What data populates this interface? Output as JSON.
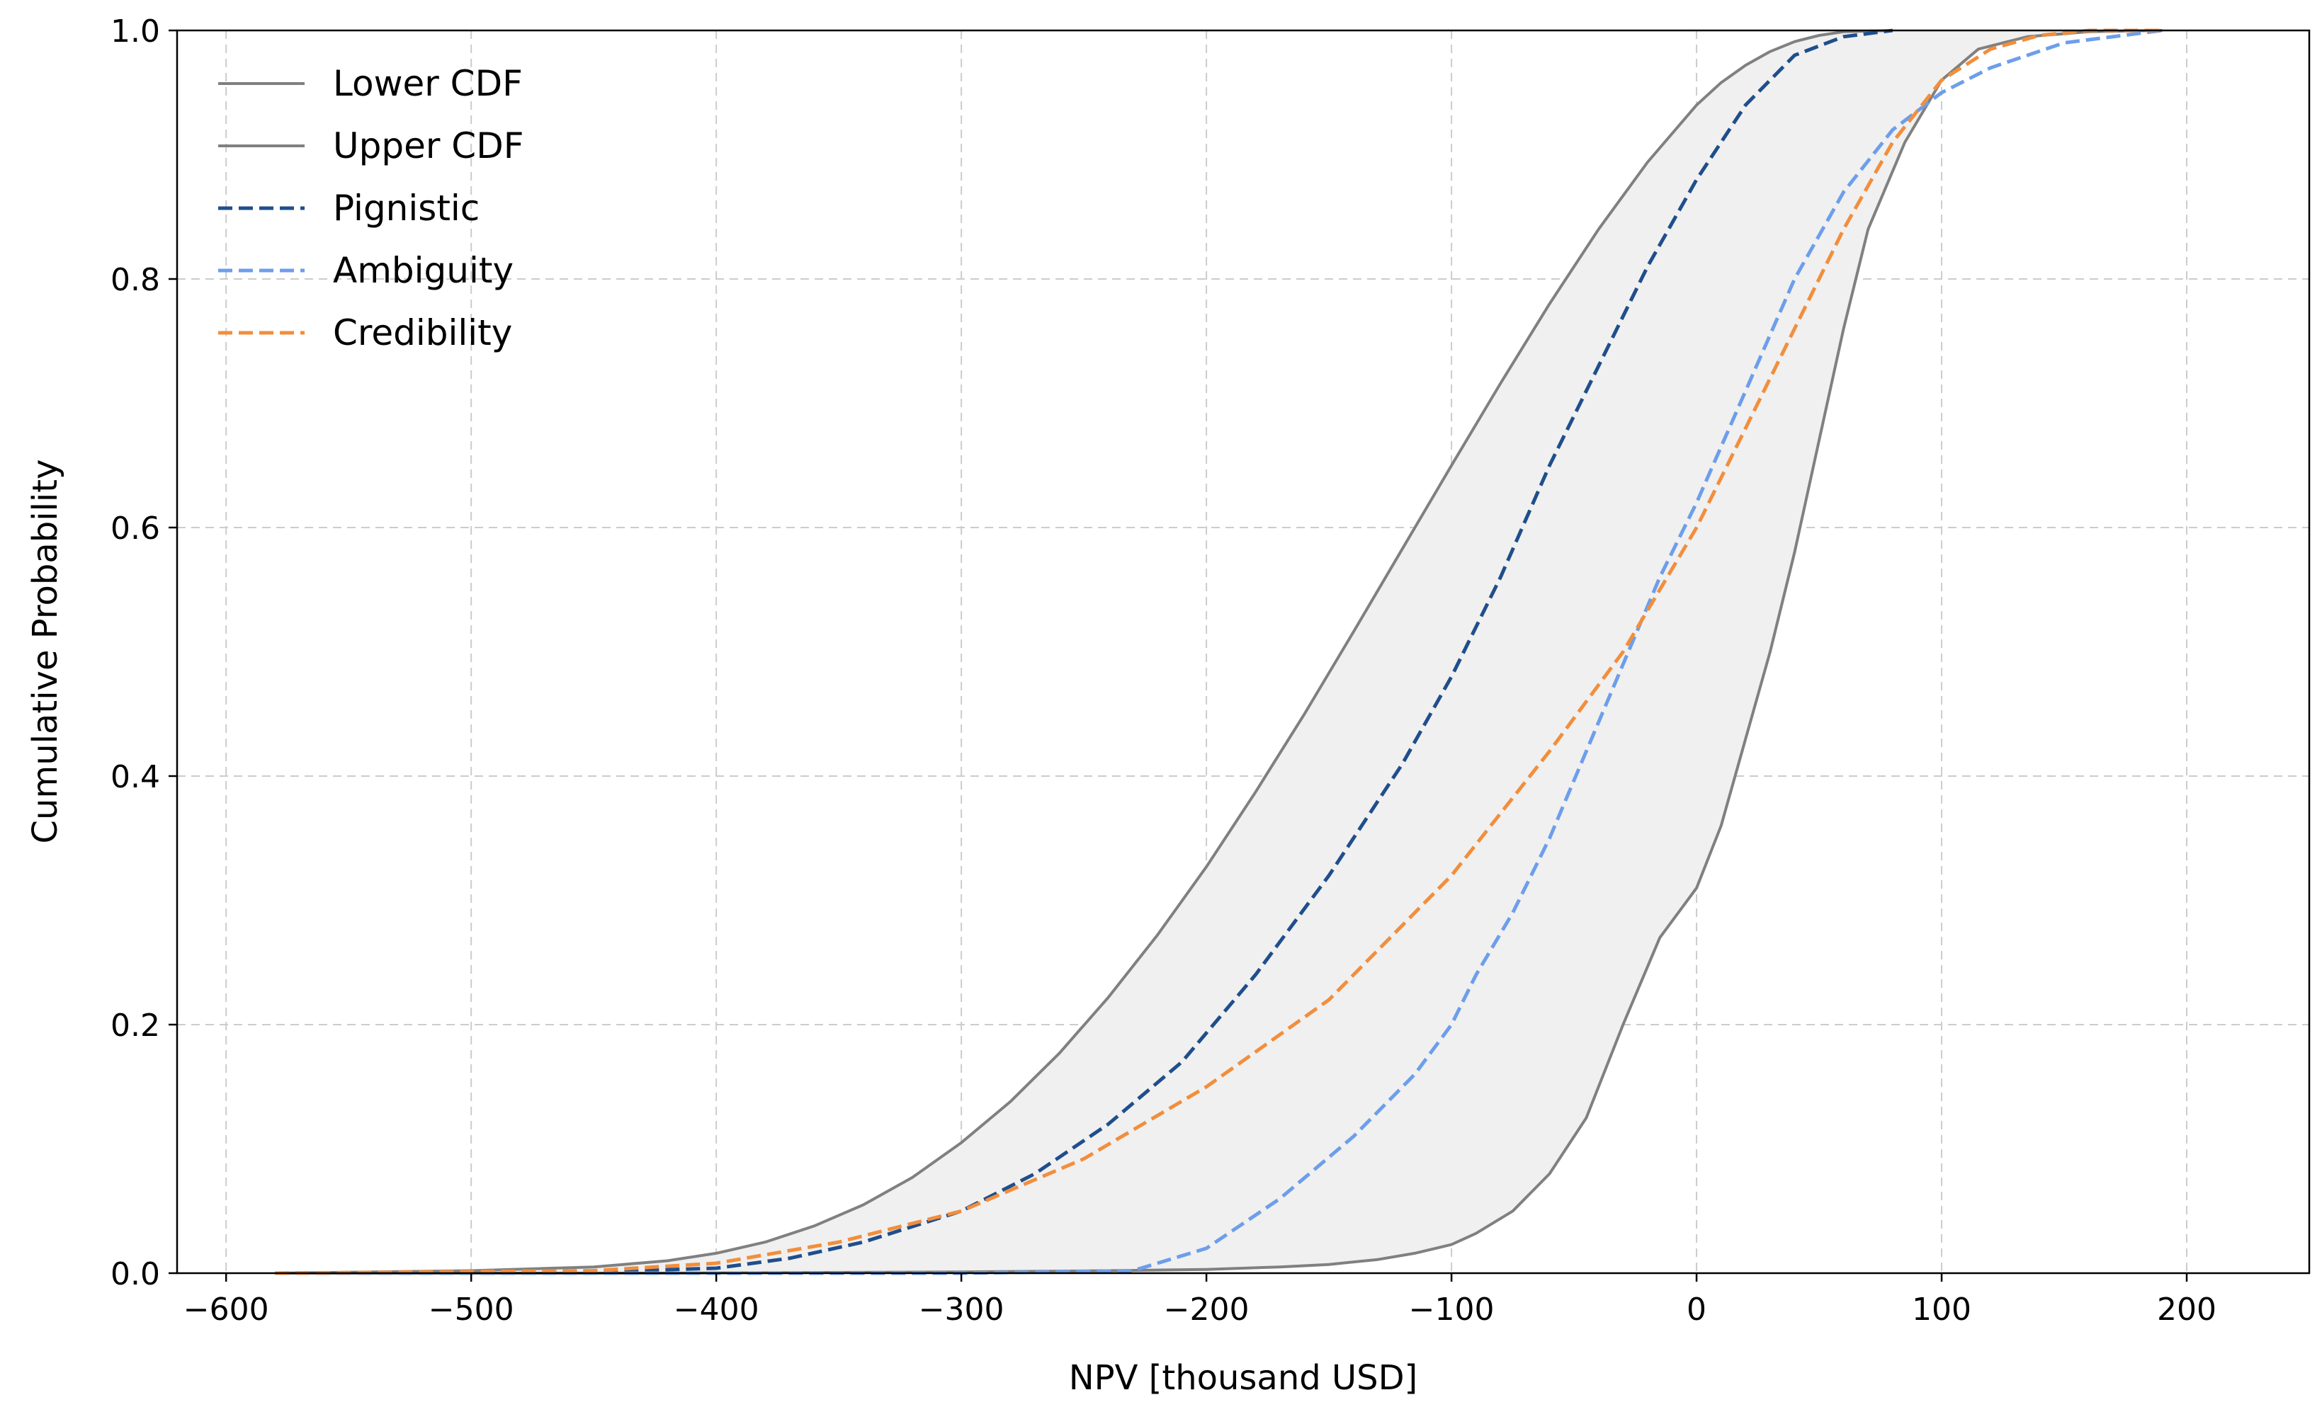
{
  "chart_data": {
    "type": "line",
    "title": "",
    "xlabel": "NPV [thousand USD]",
    "ylabel": "Cumulative Probability",
    "xlim": [
      -620,
      250
    ],
    "ylim": [
      0,
      1
    ],
    "x_ticks": [
      -600,
      -500,
      -400,
      -300,
      -200,
      -100,
      0,
      100,
      200
    ],
    "y_ticks": [
      0.0,
      0.2,
      0.4,
      0.6,
      0.8,
      1.0
    ],
    "x_tick_labels": [
      "−600",
      "−500",
      "−400",
      "−300",
      "−200",
      "−100",
      "0",
      "100",
      "200"
    ],
    "y_tick_labels": [
      "0.0",
      "0.2",
      "0.4",
      "0.6",
      "0.8",
      "1.0"
    ],
    "grid": true,
    "legend_position": "top-left",
    "band": {
      "between": [
        "Lower CDF",
        "Upper CDF"
      ],
      "color": "#f0f0f0"
    },
    "series": [
      {
        "name": "Lower CDF",
        "style": "solid",
        "color": "#808080",
        "x": [
          -580,
          -420,
          -300,
          -240,
          -200,
          -170,
          -150,
          -130,
          -115,
          -100,
          -90,
          -75,
          -60,
          -45,
          -30,
          -15,
          0,
          10,
          20,
          30,
          40,
          50,
          60,
          70,
          85,
          100,
          115,
          135,
          160,
          190
        ],
        "y": [
          0.0,
          0.0,
          0.001,
          0.002,
          0.003,
          0.005,
          0.007,
          0.011,
          0.016,
          0.023,
          0.032,
          0.05,
          0.08,
          0.125,
          0.2,
          0.27,
          0.31,
          0.36,
          0.43,
          0.5,
          0.58,
          0.67,
          0.76,
          0.84,
          0.91,
          0.96,
          0.985,
          0.995,
          0.999,
          1.0
        ]
      },
      {
        "name": "Upper CDF",
        "style": "solid",
        "color": "#808080",
        "x": [
          -580,
          -500,
          -450,
          -420,
          -400,
          -380,
          -360,
          -340,
          -320,
          -300,
          -280,
          -260,
          -240,
          -220,
          -200,
          -180,
          -160,
          -140,
          -120,
          -100,
          -80,
          -60,
          -40,
          -20,
          0,
          10,
          20,
          30,
          40,
          50,
          60,
          80
        ],
        "y": [
          0.0,
          0.002,
          0.005,
          0.01,
          0.016,
          0.025,
          0.038,
          0.055,
          0.077,
          0.105,
          0.138,
          0.177,
          0.222,
          0.272,
          0.327,
          0.387,
          0.45,
          0.516,
          0.583,
          0.65,
          0.716,
          0.78,
          0.84,
          0.894,
          0.94,
          0.958,
          0.972,
          0.983,
          0.991,
          0.996,
          0.999,
          1.0
        ]
      },
      {
        "name": "Pignistic",
        "style": "dashed",
        "color": "#1f4e8c",
        "x": [
          -580,
          -450,
          -400,
          -370,
          -340,
          -300,
          -270,
          -240,
          -210,
          -180,
          -150,
          -120,
          -100,
          -80,
          -60,
          -40,
          -20,
          0,
          20,
          40,
          60,
          80
        ],
        "y": [
          0.0,
          0.001,
          0.004,
          0.012,
          0.025,
          0.05,
          0.08,
          0.12,
          0.17,
          0.24,
          0.32,
          0.41,
          0.48,
          0.56,
          0.65,
          0.73,
          0.81,
          0.88,
          0.94,
          0.98,
          0.995,
          1.0
        ]
      },
      {
        "name": "Ambiguity",
        "style": "dashed",
        "color": "#6d9eeb",
        "x": [
          -580,
          -400,
          -300,
          -230,
          -200,
          -170,
          -140,
          -115,
          -100,
          -90,
          -75,
          -60,
          -45,
          -30,
          -15,
          0,
          20,
          40,
          60,
          80,
          100,
          120,
          150,
          190
        ],
        "y": [
          0.0,
          0.0,
          0.0,
          0.002,
          0.02,
          0.06,
          0.11,
          0.16,
          0.2,
          0.24,
          0.29,
          0.35,
          0.42,
          0.49,
          0.56,
          0.62,
          0.71,
          0.8,
          0.87,
          0.92,
          0.95,
          0.97,
          0.99,
          1.0
        ]
      },
      {
        "name": "Credibility",
        "style": "dashed",
        "color": "#f28e3c",
        "x": [
          -580,
          -450,
          -400,
          -350,
          -300,
          -250,
          -200,
          -150,
          -100,
          -60,
          -30,
          0,
          20,
          40,
          60,
          80,
          100,
          120,
          140,
          160,
          190
        ],
        "y": [
          0.0,
          0.002,
          0.008,
          0.025,
          0.05,
          0.092,
          0.15,
          0.22,
          0.32,
          0.42,
          0.5,
          0.6,
          0.68,
          0.76,
          0.84,
          0.91,
          0.96,
          0.985,
          0.996,
          1.0,
          1.0
        ]
      }
    ]
  }
}
